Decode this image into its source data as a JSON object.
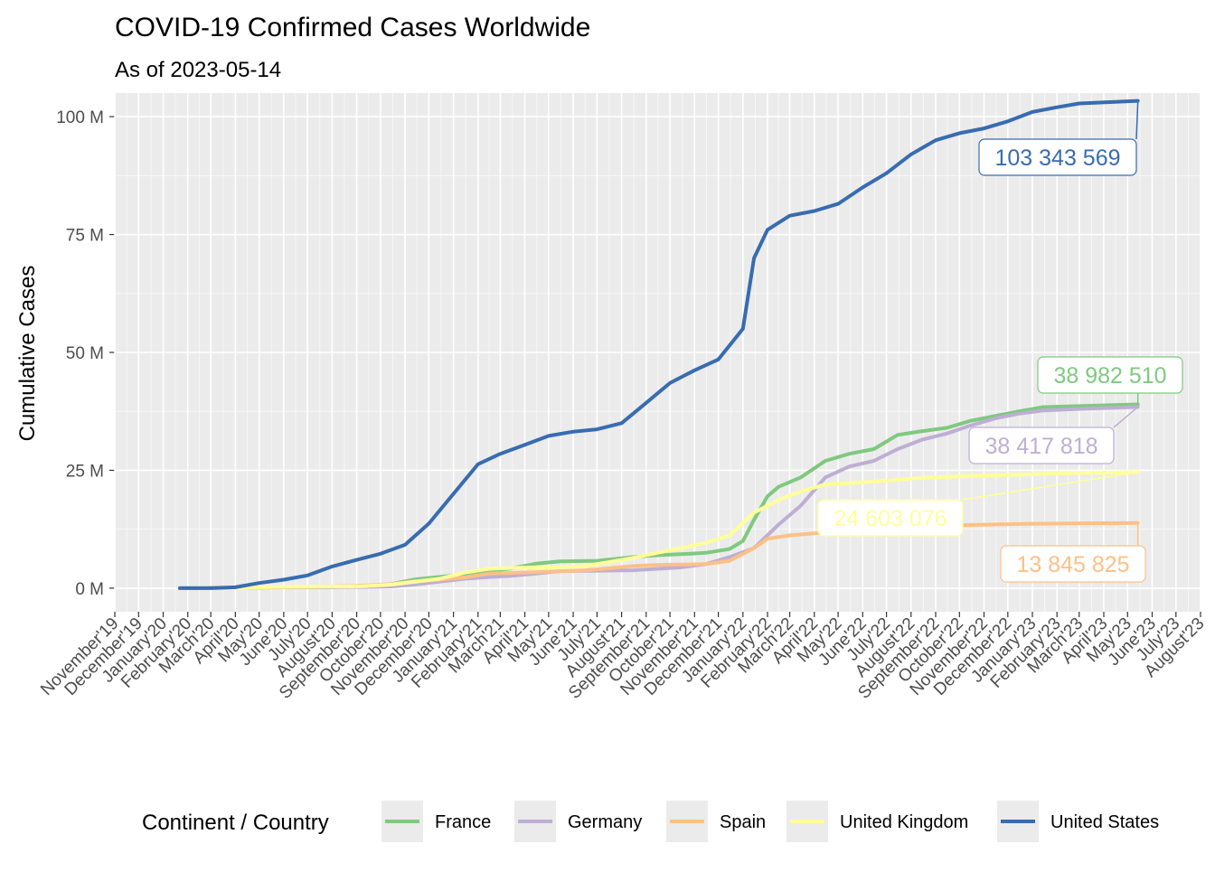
{
  "chart_data": {
    "type": "line",
    "title": "COVID-19 Confirmed Cases Worldwide",
    "subtitle": "As of 2023-05-14",
    "xlabel": "",
    "ylabel": "Cumulative Cases",
    "x_range": [
      "2019-11-01",
      "2023-08-01"
    ],
    "ylim": [
      -5000000,
      105000000
    ],
    "y_ticks": [
      {
        "value": 0,
        "label": "0 M"
      },
      {
        "value": 25000000,
        "label": "25 M"
      },
      {
        "value": 50000000,
        "label": "50 M"
      },
      {
        "value": 75000000,
        "label": "75 M"
      },
      {
        "value": 100000000,
        "label": "100 M"
      }
    ],
    "x_ticks": [
      {
        "date": "2019-11-01",
        "label": "November'19"
      },
      {
        "date": "2019-12-01",
        "label": "December'19"
      },
      {
        "date": "2020-01-01",
        "label": "January'20"
      },
      {
        "date": "2020-02-01",
        "label": "February'20"
      },
      {
        "date": "2020-03-01",
        "label": "March'20"
      },
      {
        "date": "2020-04-01",
        "label": "April'20"
      },
      {
        "date": "2020-05-01",
        "label": "May'20"
      },
      {
        "date": "2020-06-01",
        "label": "June'20"
      },
      {
        "date": "2020-07-01",
        "label": "July'20"
      },
      {
        "date": "2020-08-01",
        "label": "August'20"
      },
      {
        "date": "2020-09-01",
        "label": "September'20"
      },
      {
        "date": "2020-10-01",
        "label": "October'20"
      },
      {
        "date": "2020-11-01",
        "label": "November'20"
      },
      {
        "date": "2020-12-01",
        "label": "December'20"
      },
      {
        "date": "2021-01-01",
        "label": "January'21"
      },
      {
        "date": "2021-02-01",
        "label": "February'21"
      },
      {
        "date": "2021-03-01",
        "label": "March'21"
      },
      {
        "date": "2021-04-01",
        "label": "April'21"
      },
      {
        "date": "2021-05-01",
        "label": "May'21"
      },
      {
        "date": "2021-06-01",
        "label": "June'21"
      },
      {
        "date": "2021-07-01",
        "label": "July'21"
      },
      {
        "date": "2021-08-01",
        "label": "August'21"
      },
      {
        "date": "2021-09-01",
        "label": "September'21"
      },
      {
        "date": "2021-10-01",
        "label": "October'21"
      },
      {
        "date": "2021-11-01",
        "label": "November'21"
      },
      {
        "date": "2021-12-01",
        "label": "December'21"
      },
      {
        "date": "2022-01-01",
        "label": "January'22"
      },
      {
        "date": "2022-02-01",
        "label": "February'22"
      },
      {
        "date": "2022-03-01",
        "label": "March'22"
      },
      {
        "date": "2022-04-01",
        "label": "April'22"
      },
      {
        "date": "2022-05-01",
        "label": "May'22"
      },
      {
        "date": "2022-06-01",
        "label": "June'22"
      },
      {
        "date": "2022-07-01",
        "label": "July'22"
      },
      {
        "date": "2022-08-01",
        "label": "August'22"
      },
      {
        "date": "2022-09-01",
        "label": "September'22"
      },
      {
        "date": "2022-10-01",
        "label": "October'22"
      },
      {
        "date": "2022-11-01",
        "label": "November'22"
      },
      {
        "date": "2022-12-01",
        "label": "December'22"
      },
      {
        "date": "2023-01-01",
        "label": "January'23"
      },
      {
        "date": "2023-02-01",
        "label": "February'23"
      },
      {
        "date": "2023-03-01",
        "label": "March'23"
      },
      {
        "date": "2023-04-01",
        "label": "April'23"
      },
      {
        "date": "2023-05-01",
        "label": "May'23"
      },
      {
        "date": "2023-06-01",
        "label": "June'23"
      },
      {
        "date": "2023-07-01",
        "label": "July'23"
      },
      {
        "date": "2023-08-01",
        "label": "August'23"
      }
    ],
    "grid": true,
    "legend": {
      "title": "Continent / Country",
      "position": "bottom"
    },
    "series": [
      {
        "name": "France",
        "color": "#7fc97f",
        "final_label": "38 982 510",
        "points": [
          [
            "2020-01-22",
            0
          ],
          [
            "2020-03-01",
            100000
          ],
          [
            "2020-04-01",
            100000
          ],
          [
            "2020-06-01",
            190000
          ],
          [
            "2020-08-01",
            230000
          ],
          [
            "2020-09-15",
            500000
          ],
          [
            "2020-10-15",
            900000
          ],
          [
            "2020-11-15",
            1900000
          ],
          [
            "2020-12-15",
            2400000
          ],
          [
            "2021-01-15",
            2900000
          ],
          [
            "2021-02-15",
            3600000
          ],
          [
            "2021-03-15",
            4200000
          ],
          [
            "2021-04-15",
            5200000
          ],
          [
            "2021-05-15",
            5700000
          ],
          [
            "2021-07-01",
            5800000
          ],
          [
            "2021-08-15",
            6600000
          ],
          [
            "2021-09-15",
            7000000
          ],
          [
            "2021-10-15",
            7200000
          ],
          [
            "2021-11-15",
            7500000
          ],
          [
            "2021-12-15",
            8300000
          ],
          [
            "2022-01-01",
            10000000
          ],
          [
            "2022-01-15",
            14500000
          ],
          [
            "2022-02-01",
            19500000
          ],
          [
            "2022-02-15",
            21500000
          ],
          [
            "2022-03-15",
            23500000
          ],
          [
            "2022-04-15",
            27000000
          ],
          [
            "2022-05-15",
            28500000
          ],
          [
            "2022-06-15",
            29500000
          ],
          [
            "2022-07-15",
            32500000
          ],
          [
            "2022-08-15",
            33300000
          ],
          [
            "2022-09-15",
            34000000
          ],
          [
            "2022-10-15",
            35500000
          ],
          [
            "2022-11-15",
            36500000
          ],
          [
            "2022-12-15",
            37500000
          ],
          [
            "2023-01-15",
            38400000
          ],
          [
            "2023-03-15",
            38700000
          ],
          [
            "2023-05-14",
            38982510
          ]
        ]
      },
      {
        "name": "Germany",
        "color": "#beaed4",
        "final_label": "38 417 818",
        "points": [
          [
            "2020-01-22",
            0
          ],
          [
            "2020-04-01",
            70000
          ],
          [
            "2020-06-01",
            180000
          ],
          [
            "2020-09-01",
            240000
          ],
          [
            "2020-10-15",
            370000
          ],
          [
            "2020-11-15",
            800000
          ],
          [
            "2020-12-15",
            1400000
          ],
          [
            "2021-01-15",
            2000000
          ],
          [
            "2021-02-15",
            2350000
          ],
          [
            "2021-03-15",
            2600000
          ],
          [
            "2021-04-15",
            3100000
          ],
          [
            "2021-05-15",
            3600000
          ],
          [
            "2021-07-01",
            3700000
          ],
          [
            "2021-08-15",
            3800000
          ],
          [
            "2021-09-15",
            4100000
          ],
          [
            "2021-10-15",
            4400000
          ],
          [
            "2021-11-15",
            5100000
          ],
          [
            "2021-12-15",
            6600000
          ],
          [
            "2022-01-15",
            8500000
          ],
          [
            "2022-02-15",
            13500000
          ],
          [
            "2022-03-15",
            17500000
          ],
          [
            "2022-04-15",
            23500000
          ],
          [
            "2022-05-15",
            25800000
          ],
          [
            "2022-06-15",
            27000000
          ],
          [
            "2022-07-15",
            29500000
          ],
          [
            "2022-08-15",
            31500000
          ],
          [
            "2022-09-15",
            32800000
          ],
          [
            "2022-10-15",
            34500000
          ],
          [
            "2022-11-15",
            36000000
          ],
          [
            "2022-12-15",
            37000000
          ],
          [
            "2023-01-15",
            37700000
          ],
          [
            "2023-03-15",
            38100000
          ],
          [
            "2023-05-14",
            38417818
          ]
        ]
      },
      {
        "name": "Spain",
        "color": "#fdc086",
        "final_label": "13 845 825",
        "points": [
          [
            "2020-01-22",
            0
          ],
          [
            "2020-03-01",
            50000
          ],
          [
            "2020-04-01",
            150000
          ],
          [
            "2020-07-01",
            250000
          ],
          [
            "2020-09-01",
            480000
          ],
          [
            "2020-10-15",
            900000
          ],
          [
            "2020-11-15",
            1500000
          ],
          [
            "2020-12-15",
            1800000
          ],
          [
            "2021-01-15",
            2300000
          ],
          [
            "2021-02-15",
            3100000
          ],
          [
            "2021-03-15",
            3250000
          ],
          [
            "2021-04-15",
            3400000
          ],
          [
            "2021-05-15",
            3600000
          ],
          [
            "2021-06-15",
            3750000
          ],
          [
            "2021-07-15",
            4200000
          ],
          [
            "2021-08-15",
            4700000
          ],
          [
            "2021-09-15",
            4950000
          ],
          [
            "2021-10-15",
            5000000
          ],
          [
            "2021-11-15",
            5100000
          ],
          [
            "2021-12-15",
            5800000
          ],
          [
            "2022-01-15",
            8500000
          ],
          [
            "2022-02-01",
            10500000
          ],
          [
            "2022-03-01",
            11200000
          ],
          [
            "2022-04-15",
            11800000
          ],
          [
            "2022-06-15",
            12600000
          ],
          [
            "2022-08-15",
            13200000
          ],
          [
            "2022-10-15",
            13400000
          ],
          [
            "2022-12-15",
            13600000
          ],
          [
            "2023-02-15",
            13750000
          ],
          [
            "2023-05-14",
            13845825
          ]
        ]
      },
      {
        "name": "United Kingdom",
        "color": "#ffff99",
        "final_label": "24 603 076",
        "points": [
          [
            "2020-01-22",
            0
          ],
          [
            "2020-04-01",
            30000
          ],
          [
            "2020-05-15",
            250000
          ],
          [
            "2020-07-01",
            300000
          ],
          [
            "2020-09-01",
            350000
          ],
          [
            "2020-10-15",
            750000
          ],
          [
            "2020-11-15",
            1400000
          ],
          [
            "2020-12-15",
            2000000
          ],
          [
            "2021-01-15",
            3300000
          ],
          [
            "2021-02-15",
            4100000
          ],
          [
            "2021-03-15",
            4300000
          ],
          [
            "2021-04-15",
            4400000
          ],
          [
            "2021-05-15",
            4450000
          ],
          [
            "2021-06-15",
            4700000
          ],
          [
            "2021-07-15",
            5500000
          ],
          [
            "2021-08-15",
            6400000
          ],
          [
            "2021-09-15",
            7500000
          ],
          [
            "2021-10-15",
            8500000
          ],
          [
            "2021-11-15",
            9600000
          ],
          [
            "2021-12-15",
            11200000
          ],
          [
            "2022-01-15",
            16000000
          ],
          [
            "2022-02-15",
            18700000
          ],
          [
            "2022-03-15",
            20500000
          ],
          [
            "2022-04-15",
            22000000
          ],
          [
            "2022-06-15",
            22600000
          ],
          [
            "2022-08-15",
            23400000
          ],
          [
            "2022-10-15",
            23800000
          ],
          [
            "2022-12-15",
            24100000
          ],
          [
            "2023-02-15",
            24400000
          ],
          [
            "2023-05-14",
            24603076
          ]
        ]
      },
      {
        "name": "United States",
        "color": "#386cb0",
        "final_label": "103 343 569",
        "points": [
          [
            "2020-01-22",
            0
          ],
          [
            "2020-03-01",
            80
          ],
          [
            "2020-04-01",
            200000
          ],
          [
            "2020-05-01",
            1100000
          ],
          [
            "2020-06-01",
            1800000
          ],
          [
            "2020-07-01",
            2700000
          ],
          [
            "2020-08-01",
            4600000
          ],
          [
            "2020-09-01",
            6000000
          ],
          [
            "2020-10-01",
            7300000
          ],
          [
            "2020-11-01",
            9200000
          ],
          [
            "2020-12-01",
            13700000
          ],
          [
            "2021-01-01",
            20000000
          ],
          [
            "2021-02-01",
            26300000
          ],
          [
            "2021-03-01",
            28500000
          ],
          [
            "2021-04-01",
            30400000
          ],
          [
            "2021-05-01",
            32300000
          ],
          [
            "2021-06-01",
            33200000
          ],
          [
            "2021-07-01",
            33700000
          ],
          [
            "2021-08-01",
            35000000
          ],
          [
            "2021-09-01",
            39300000
          ],
          [
            "2021-10-01",
            43500000
          ],
          [
            "2021-11-01",
            46200000
          ],
          [
            "2021-12-01",
            48500000
          ],
          [
            "2022-01-01",
            55000000
          ],
          [
            "2022-01-15",
            70000000
          ],
          [
            "2022-02-01",
            76000000
          ],
          [
            "2022-03-01",
            79000000
          ],
          [
            "2022-04-01",
            80000000
          ],
          [
            "2022-05-01",
            81500000
          ],
          [
            "2022-06-01",
            85000000
          ],
          [
            "2022-07-01",
            88000000
          ],
          [
            "2022-08-01",
            92000000
          ],
          [
            "2022-09-01",
            95000000
          ],
          [
            "2022-10-01",
            96500000
          ],
          [
            "2022-11-01",
            97500000
          ],
          [
            "2022-12-01",
            99000000
          ],
          [
            "2023-01-01",
            101000000
          ],
          [
            "2023-02-01",
            102000000
          ],
          [
            "2023-03-01",
            102800000
          ],
          [
            "2023-05-14",
            103343569
          ]
        ]
      }
    ]
  }
}
